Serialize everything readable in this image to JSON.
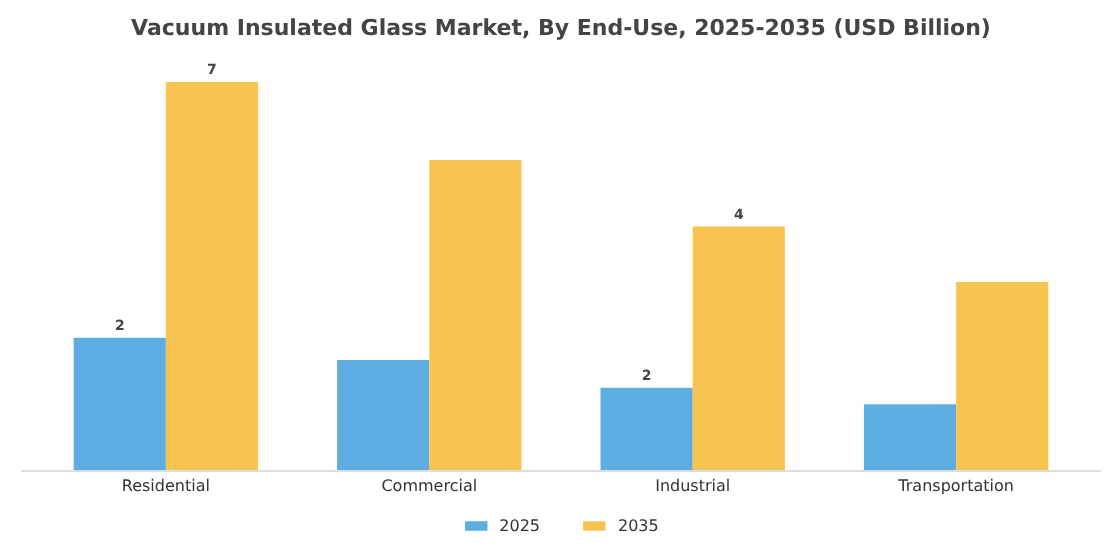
{
  "chart_data": {
    "type": "bar",
    "title": "Vacuum Insulated Glass Market, By End-Use, 2025-2035 (USD Billion)",
    "categories": [
      "Residential",
      "Commercial",
      "Industrial",
      "Transportation"
    ],
    "series": [
      {
        "name": "2025",
        "color": "#5dade2",
        "values": [
          2.4,
          2.0,
          1.5,
          1.2
        ],
        "value_labels": [
          "2",
          null,
          "2",
          null
        ]
      },
      {
        "name": "2035",
        "color": "#f8c44f",
        "values": [
          7.0,
          5.6,
          4.4,
          3.4
        ],
        "value_labels": [
          "7",
          null,
          "4",
          null
        ]
      }
    ],
    "legend": "bottom",
    "tick_labels": "x"
  }
}
